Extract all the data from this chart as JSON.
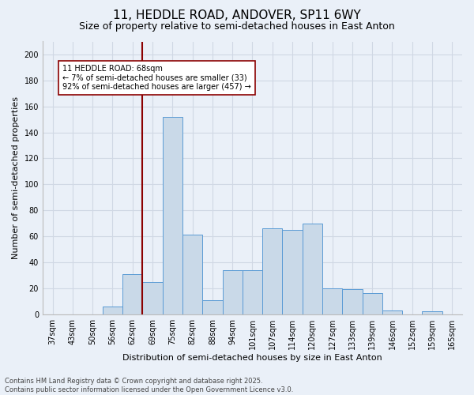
{
  "title": "11, HEDDLE ROAD, ANDOVER, SP11 6WY",
  "subtitle": "Size of property relative to semi-detached houses in East Anton",
  "xlabel": "Distribution of semi-detached houses by size in East Anton",
  "ylabel": "Number of semi-detached properties",
  "categories": [
    "37sqm",
    "43sqm",
    "50sqm",
    "56sqm",
    "62sqm",
    "69sqm",
    "75sqm",
    "82sqm",
    "88sqm",
    "94sqm",
    "101sqm",
    "107sqm",
    "114sqm",
    "120sqm",
    "127sqm",
    "133sqm",
    "139sqm",
    "146sqm",
    "152sqm",
    "159sqm",
    "165sqm"
  ],
  "values": [
    0,
    0,
    0,
    6,
    31,
    25,
    152,
    61,
    11,
    34,
    34,
    66,
    65,
    70,
    20,
    19,
    16,
    3,
    0,
    2,
    0
  ],
  "bar_color": "#c9d9e8",
  "bar_edge_color": "#5b9bd5",
  "grid_color": "#d0d8e4",
  "background_color": "#eaf0f8",
  "vline_color": "#8b0000",
  "vline_index": 5.5,
  "annotation_text": "11 HEDDLE ROAD: 68sqm\n← 7% of semi-detached houses are smaller (33)\n92% of semi-detached houses are larger (457) →",
  "annotation_box_color": "#ffffff",
  "annotation_box_edge": "#8b0000",
  "ylim": [
    0,
    210
  ],
  "yticks": [
    0,
    20,
    40,
    60,
    80,
    100,
    120,
    140,
    160,
    180,
    200
  ],
  "footer": "Contains HM Land Registry data © Crown copyright and database right 2025.\nContains public sector information licensed under the Open Government Licence v3.0.",
  "title_fontsize": 11,
  "subtitle_fontsize": 9,
  "axis_label_fontsize": 8,
  "tick_fontsize": 7,
  "annotation_fontsize": 7,
  "footer_fontsize": 6
}
